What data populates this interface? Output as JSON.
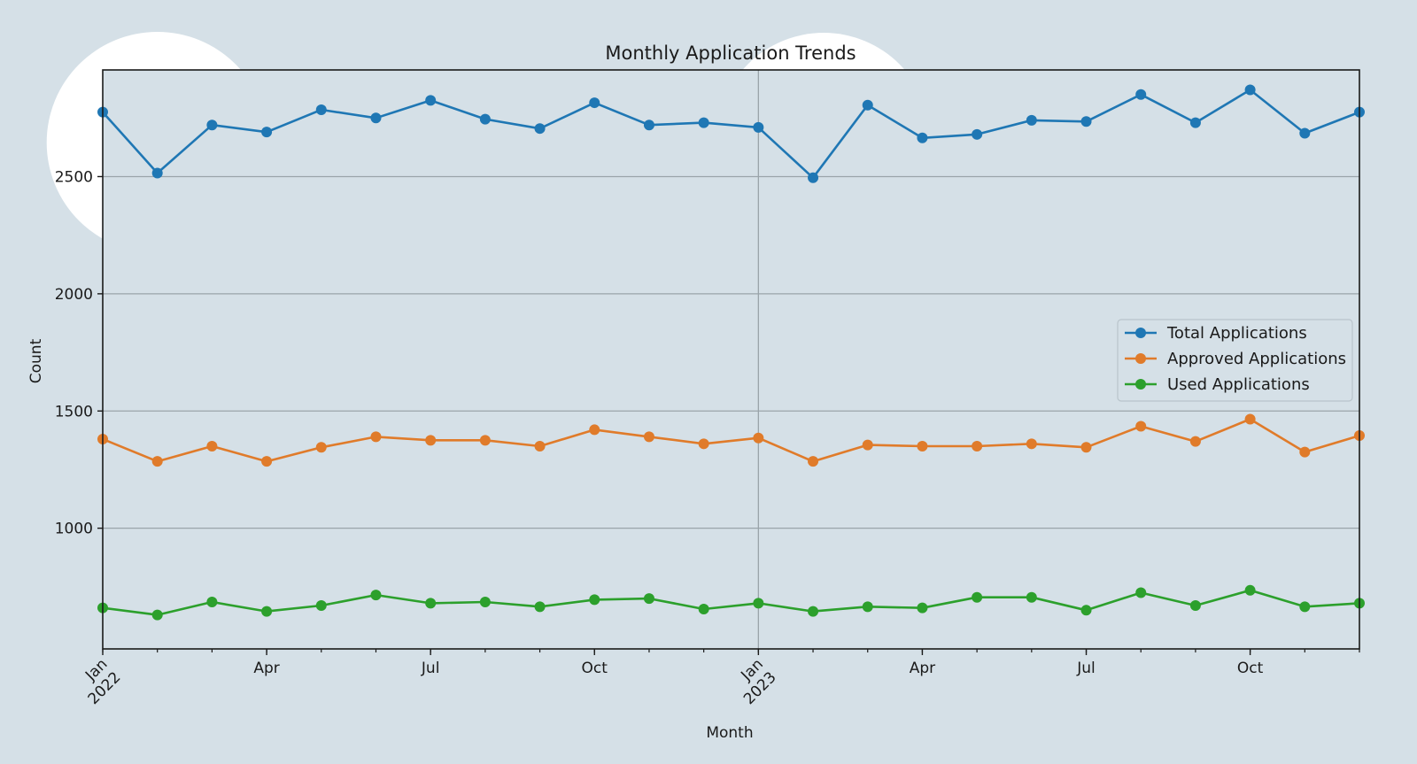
{
  "chart_data": {
    "type": "line",
    "title": "Monthly Application Trends",
    "xlabel": "Month",
    "ylabel": "Count",
    "x": [
      "2022-01",
      "2022-02",
      "2022-03",
      "2022-04",
      "2022-05",
      "2022-06",
      "2022-07",
      "2022-08",
      "2022-09",
      "2022-10",
      "2022-11",
      "2022-12",
      "2023-01",
      "2023-02",
      "2023-03",
      "2023-04",
      "2023-05",
      "2023-06",
      "2023-07",
      "2023-08",
      "2023-09",
      "2023-10",
      "2023-11",
      "2023-12"
    ],
    "xlim": [
      "2022-01",
      "2023-12"
    ],
    "ylim": [
      485,
      2955
    ],
    "y_ticks": [
      1000,
      1500,
      2000,
      2500
    ],
    "x_ticks": [
      {
        "month": "2022-01",
        "label": "Jan\n2022"
      },
      {
        "month": "2022-04",
        "label": "Apr"
      },
      {
        "month": "2022-07",
        "label": "Jul"
      },
      {
        "month": "2022-10",
        "label": "Oct"
      },
      {
        "month": "2023-01",
        "label": "Jan\n2023"
      },
      {
        "month": "2023-04",
        "label": "Apr"
      },
      {
        "month": "2023-07",
        "label": "Jul"
      },
      {
        "month": "2023-10",
        "label": "Oct"
      }
    ],
    "grid": "y-major, x-year",
    "legend_position": "center-right",
    "series": [
      {
        "name": "Total Applications",
        "color": "#1f77b4",
        "values": [
          2775,
          2515,
          2720,
          2690,
          2785,
          2750,
          2825,
          2745,
          2705,
          2815,
          2720,
          2730,
          2710,
          2495,
          2805,
          2665,
          2680,
          2740,
          2735,
          2850,
          2730,
          2870,
          2685,
          2775
        ]
      },
      {
        "name": "Approved Applications",
        "color": "#e07b2a",
        "values": [
          1380,
          1285,
          1350,
          1285,
          1345,
          1390,
          1375,
          1375,
          1350,
          1420,
          1390,
          1360,
          1385,
          1285,
          1355,
          1350,
          1350,
          1360,
          1345,
          1435,
          1370,
          1465,
          1325,
          1395
        ]
      },
      {
        "name": "Used Applications",
        "color": "#2ca02c",
        "values": [
          660,
          630,
          685,
          645,
          670,
          715,
          680,
          685,
          665,
          695,
          700,
          655,
          680,
          645,
          665,
          660,
          705,
          705,
          650,
          725,
          670,
          735,
          665,
          680
        ]
      }
    ],
    "highlights": [
      {
        "shape": "circle",
        "color": "#ffffff",
        "near": "2022-02"
      },
      {
        "shape": "circle",
        "color": "#ffffff",
        "near": "2023-02"
      }
    ]
  }
}
